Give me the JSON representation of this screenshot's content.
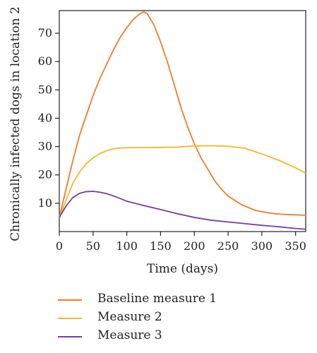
{
  "chart_data": {
    "type": "line",
    "xlabel": "Time (days)",
    "ylabel": "Chronically infected dogs in location 2",
    "xlim": [
      0,
      365
    ],
    "ylim": [
      0,
      78
    ],
    "xticks": [
      0,
      50,
      100,
      150,
      200,
      250,
      300,
      350
    ],
    "yticks": [
      10,
      20,
      30,
      40,
      50,
      60,
      70
    ],
    "grid": false,
    "legend_placement": "below",
    "series": [
      {
        "name": "Baseline measure 1",
        "color": "#f07a2c",
        "x": [
          0,
          10,
          20,
          30,
          40,
          50,
          60,
          70,
          80,
          90,
          100,
          110,
          120,
          125,
          130,
          140,
          150,
          160,
          170,
          180,
          190,
          200,
          210,
          220,
          230,
          240,
          250,
          260,
          270,
          280,
          290,
          300,
          310,
          320,
          330,
          340,
          350,
          360,
          365
        ],
        "y": [
          5,
          15,
          25,
          34,
          41,
          48,
          54,
          59,
          64,
          68.5,
          72,
          75,
          77,
          77.5,
          77,
          73,
          67,
          60,
          52,
          44,
          37,
          31,
          26,
          22,
          18,
          15,
          12.5,
          11,
          9.5,
          8.5,
          7.5,
          7,
          6.6,
          6.3,
          6.1,
          6,
          5.9,
          5.8,
          5.8
        ]
      },
      {
        "name": "Measure 2",
        "color": "#f7b531",
        "x": [
          0,
          10,
          20,
          30,
          40,
          50,
          60,
          70,
          80,
          90,
          100,
          150,
          175,
          200,
          225,
          250,
          275,
          300,
          325,
          350,
          365
        ],
        "y": [
          5,
          11,
          17,
          21,
          24,
          26,
          27.5,
          28.5,
          29.2,
          29.5,
          29.6,
          29.7,
          29.8,
          30.2,
          30.3,
          30.1,
          29.4,
          27.4,
          25.2,
          22.5,
          20.6
        ]
      },
      {
        "name": "Measure 3",
        "color": "#7a3d9c",
        "x": [
          0,
          10,
          20,
          30,
          40,
          50,
          60,
          70,
          80,
          90,
          100,
          125,
          150,
          175,
          200,
          225,
          250,
          275,
          300,
          325,
          350,
          365
        ],
        "y": [
          5,
          9,
          12,
          13.5,
          14.1,
          14.2,
          13.9,
          13.4,
          12.6,
          11.7,
          10.7,
          9.2,
          7.8,
          6.3,
          5,
          4,
          3.4,
          2.8,
          2.2,
          1.7,
          1.1,
          0.8
        ]
      }
    ]
  }
}
